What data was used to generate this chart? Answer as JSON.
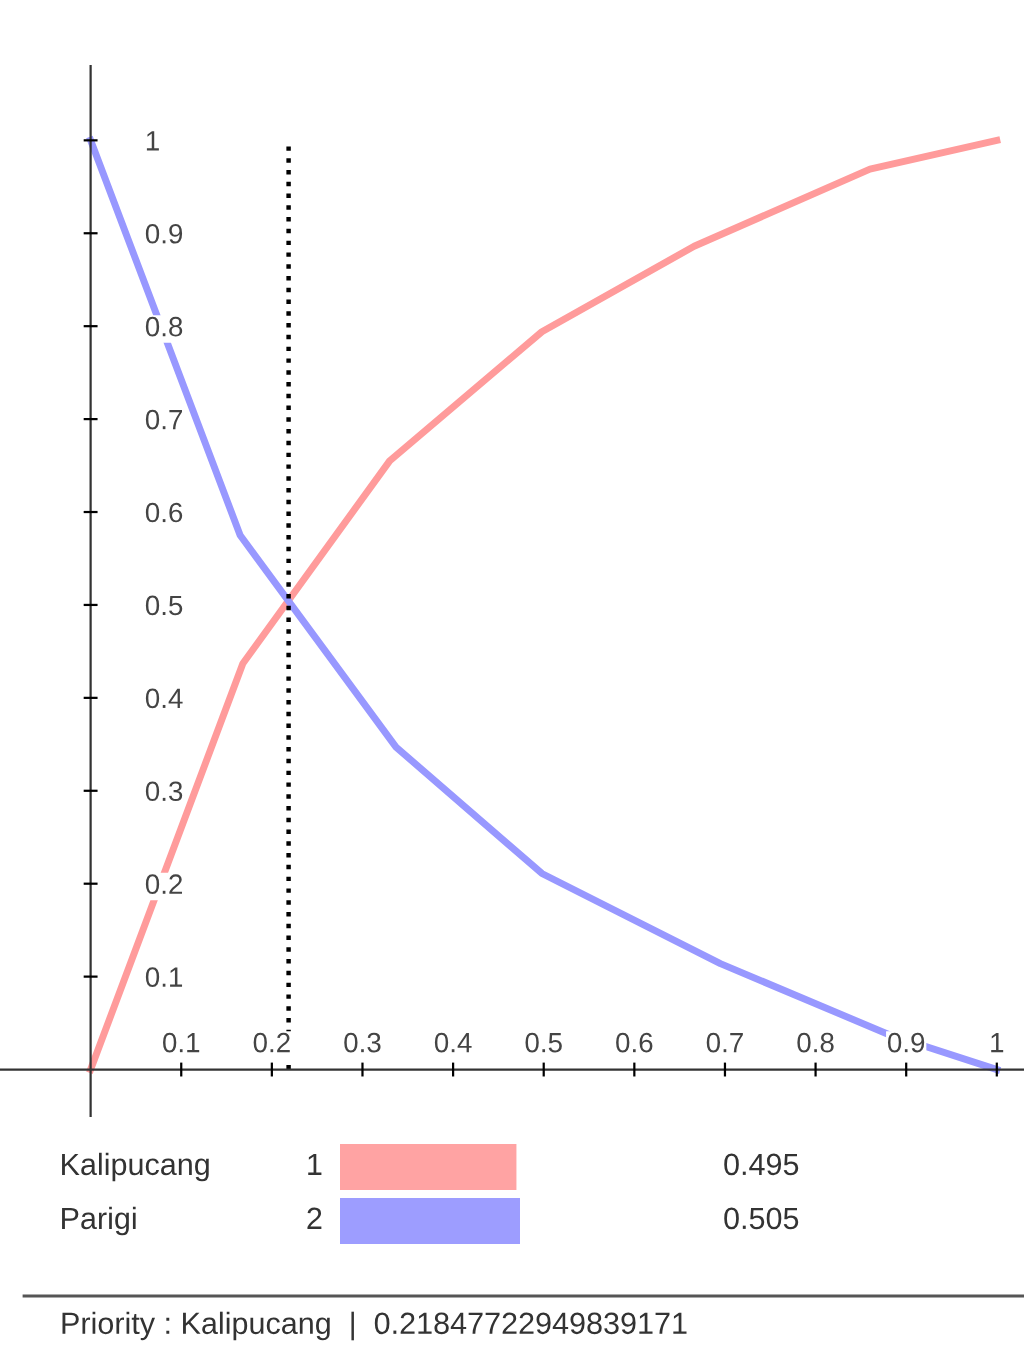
{
  "chart_data": [
    {
      "type": "line",
      "xlim": [
        -0.1,
        1.03
      ],
      "ylim": [
        -0.05,
        1.08
      ],
      "xticks": [
        0.1,
        0.2,
        0.3,
        0.4,
        0.5,
        0.6,
        0.7,
        0.8,
        0.9,
        1
      ],
      "yticks": [
        0.1,
        0.2,
        0.3,
        0.4,
        0.5,
        0.6,
        0.7,
        0.8,
        0.9,
        1
      ],
      "series": [
        {
          "color": "#ff9b9b",
          "x": [
            0,
            0.168,
            0.33,
            0.498,
            0.666,
            0.86,
            1
          ],
          "values": [
            0,
            0.437,
            0.655,
            0.794,
            0.886,
            0.969,
            1
          ]
        },
        {
          "color": "#9898ff",
          "x": [
            0,
            0.165,
            0.337,
            0.498,
            0.695,
            0.88,
            1
          ],
          "values": [
            1,
            0.575,
            0.347,
            0.211,
            0.114,
            0.038,
            0
          ]
        }
      ],
      "ref_lines": [
        {
          "axis": "x",
          "value": 0.2184772294983917,
          "color": "#000000",
          "line_style": "dotted"
        }
      ],
      "grid": false,
      "marker": "none",
      "line_style": "solid"
    },
    {
      "type": "bar",
      "orientation": "horizontal",
      "categories": [
        "Kalipucang",
        "Parigi"
      ],
      "values": [
        0.495,
        0.505
      ],
      "colors": [
        "#ffa3a3",
        "#9d9dff"
      ],
      "data_labels": true,
      "annotations": [
        "1",
        "2",
        "Priority : Kalipucang  |  0.21847722949839171"
      ]
    }
  ]
}
